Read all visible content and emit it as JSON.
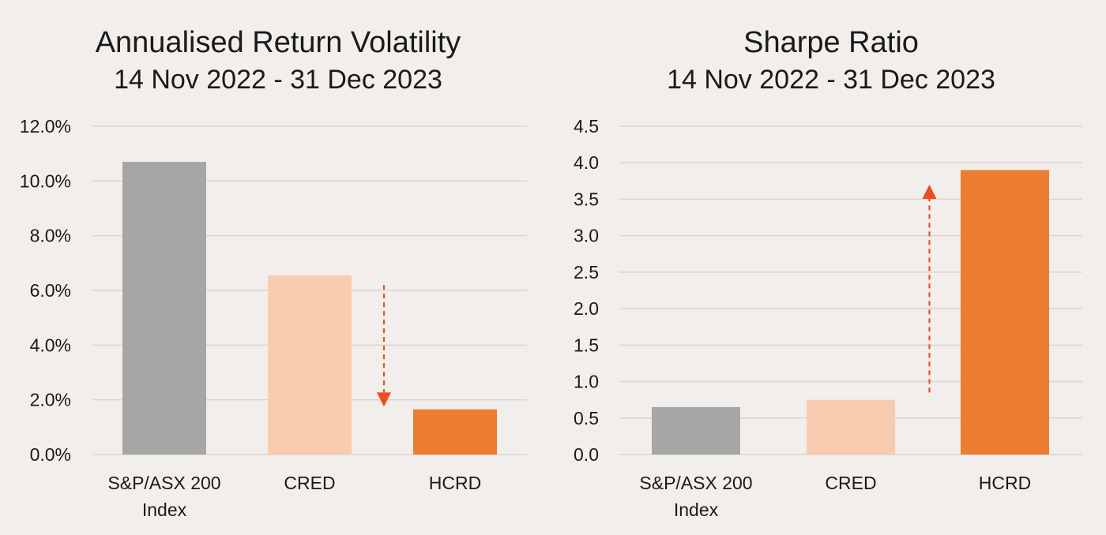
{
  "colors": {
    "background": "#f1eeeb",
    "gridline": "#d9d5d2",
    "index_bar": "#a6a6a6",
    "cred_bar": "#f9cbaf",
    "hcrd_bar": "#ed7d31",
    "arrow": "#e8501e",
    "text": "#1a1a1a"
  },
  "chart_data": [
    {
      "type": "bar",
      "title": "Annualised Return Volatility",
      "subtitle": "14 Nov 2022 - 31 Dec 2023",
      "categories": [
        [
          "S&P/ASX 200",
          "Index"
        ],
        [
          "CRED"
        ],
        [
          "HCRD"
        ]
      ],
      "values": [
        10.7,
        6.55,
        1.65
      ],
      "ylim": [
        0,
        12
      ],
      "yticks": [
        0,
        2,
        4,
        6,
        8,
        10,
        12
      ],
      "ytick_labels": [
        "0.0%",
        "2.0%",
        "4.0%",
        "6.0%",
        "8.0%",
        "10.0%",
        "12.0%"
      ],
      "grid": true,
      "annotation": {
        "type": "dashed-arrow",
        "direction": "down",
        "from_value": 6.2,
        "to_value": 1.75,
        "between_categories": [
          1,
          2
        ]
      }
    },
    {
      "type": "bar",
      "title": "Sharpe Ratio",
      "subtitle": "14 Nov 2022 - 31 Dec 2023",
      "categories": [
        [
          "S&P/ASX 200",
          "Index"
        ],
        [
          "CRED"
        ],
        [
          "HCRD"
        ]
      ],
      "values": [
        0.65,
        0.75,
        3.9
      ],
      "ylim": [
        0,
        4.5
      ],
      "yticks": [
        0,
        0.5,
        1,
        1.5,
        2,
        2.5,
        3,
        3.5,
        4,
        4.5
      ],
      "ytick_labels": [
        "0.0",
        "0.5",
        "1.0",
        "1.5",
        "2.0",
        "2.5",
        "3.0",
        "3.5",
        "4.0",
        "4.5"
      ],
      "grid": true,
      "annotation": {
        "type": "dashed-arrow",
        "direction": "up",
        "from_value": 0.85,
        "to_value": 3.7,
        "between_categories": [
          1,
          2
        ]
      }
    }
  ]
}
